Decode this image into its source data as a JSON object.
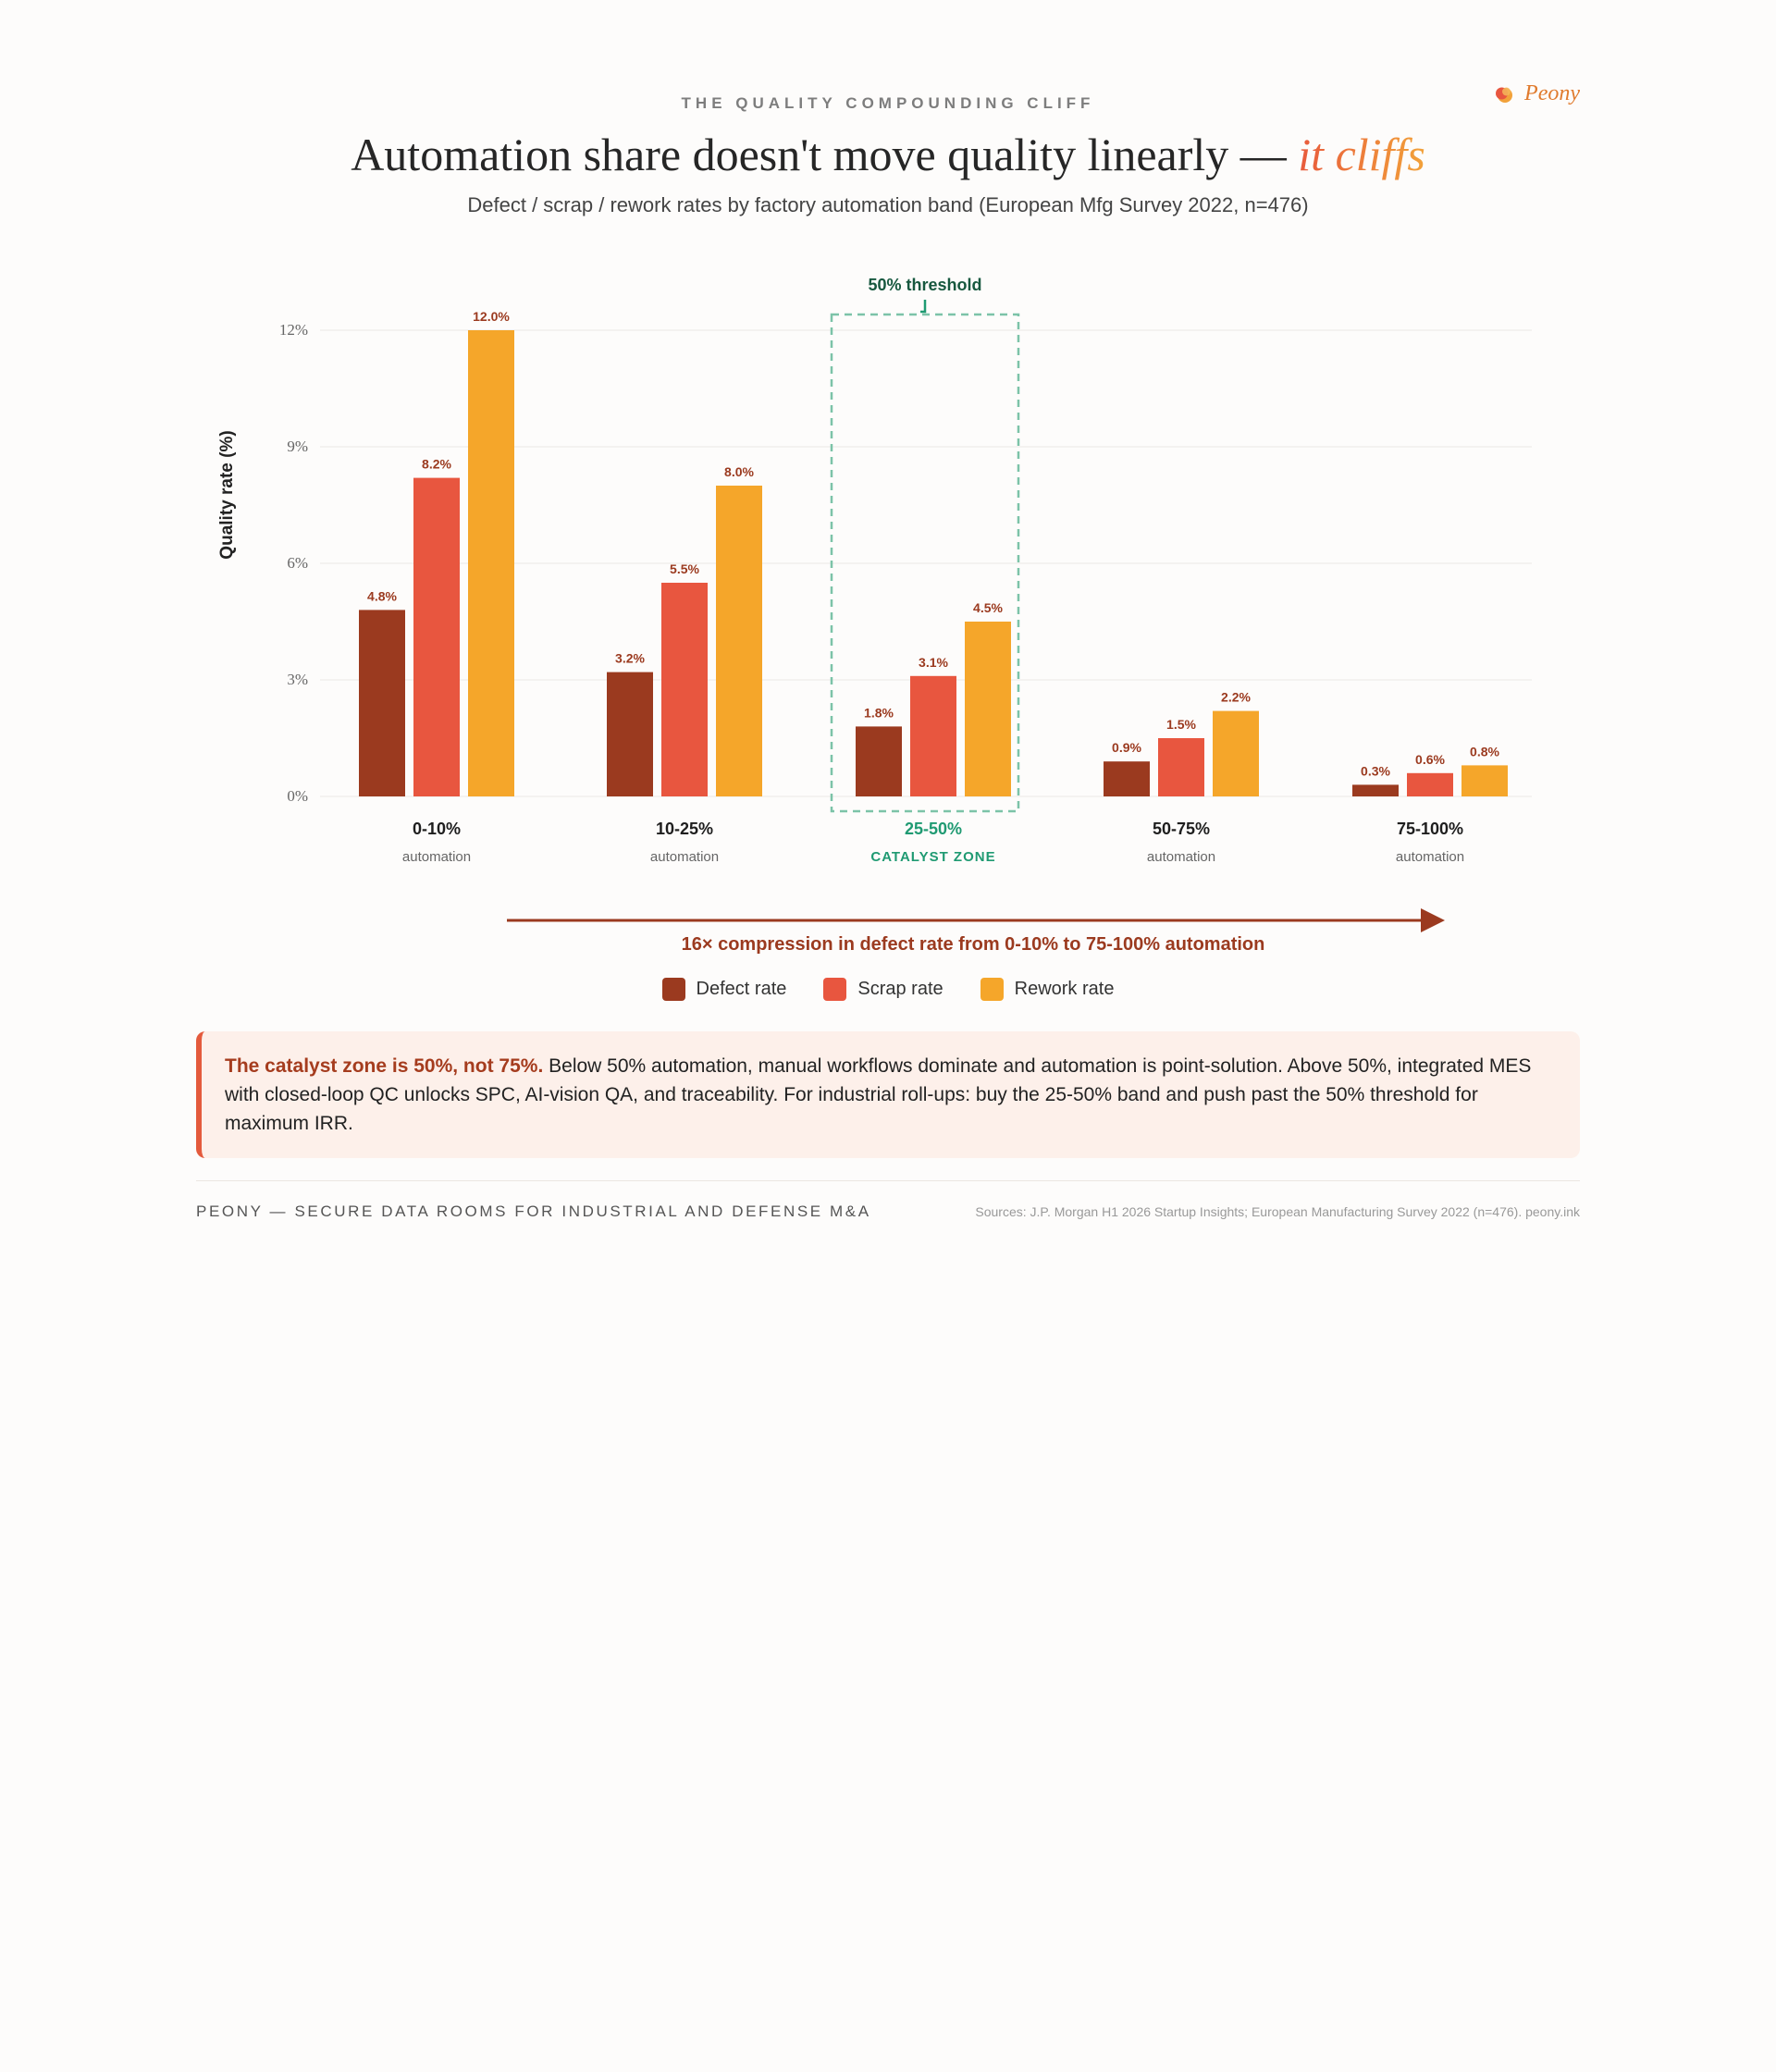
{
  "brand": {
    "name": "Peony"
  },
  "header": {
    "eyebrow": "THE QUALITY COMPOUNDING CLIFF",
    "headline": "Automation share doesn't move quality linearly —",
    "headline_accent": "it cliffs",
    "subtitle": "Defect / scrap / rework rates by factory automation band (European Mfg Survey 2022, n=476)"
  },
  "chart_data": {
    "type": "bar",
    "title": "",
    "xlabel": "",
    "ylabel": "Quality rate (%)",
    "ylim": [
      0,
      12
    ],
    "yticks": [
      {
        "value": 0,
        "label": "0%"
      },
      {
        "value": 3,
        "label": "3%"
      },
      {
        "value": 6,
        "label": "6%"
      },
      {
        "value": 9,
        "label": "9%"
      },
      {
        "value": 12,
        "label": "12%"
      }
    ],
    "grid": true,
    "legend_position": "bottom-center",
    "categories": [
      "0-10%",
      "10-25%",
      "25-50%",
      "50-75%",
      "75-100%"
    ],
    "category_sublabels": [
      "automation",
      "automation",
      "CATALYST ZONE",
      "automation",
      "automation"
    ],
    "highlight_category": "25-50%",
    "series": [
      {
        "name": "Defect rate",
        "color": "#9b3a1f",
        "values": [
          4.8,
          3.2,
          1.8,
          0.9,
          0.3
        ],
        "labels": [
          "4.8%",
          "3.2%",
          "1.8%",
          "0.9%",
          "0.3%"
        ]
      },
      {
        "name": "Scrap rate",
        "color": "#e8563f",
        "values": [
          8.2,
          5.5,
          3.1,
          1.5,
          0.6
        ],
        "labels": [
          "8.2%",
          "5.5%",
          "3.1%",
          "1.5%",
          "0.6%"
        ]
      },
      {
        "name": "Rework rate",
        "color": "#f5a62a",
        "values": [
          12.0,
          8.0,
          4.5,
          2.2,
          0.8
        ],
        "labels": [
          "12.0%",
          "8.0%",
          "4.5%",
          "2.2%",
          "0.8%"
        ]
      }
    ],
    "annotations": {
      "threshold_label": "50% threshold",
      "arrow_label": "16× compression in defect rate from 0-10% to 75-100% automation"
    }
  },
  "colors": {
    "highlight": "#1f9a72",
    "threshold_text": "#17583f",
    "value_label": "#9b3a1f",
    "arrow": "#9b3a1f"
  },
  "callout": {
    "bold": "The catalyst zone is 50%, not 75%.",
    "text": " Below 50% automation, manual workflows dominate and automation is point-solution. Above 50%, integrated MES with closed-loop QC unlocks SPC, AI-vision QA, and traceability. For industrial roll-ups: buy the 25-50% band and push past the 50% threshold for maximum IRR."
  },
  "footer": {
    "left": "PEONY — SECURE DATA ROOMS FOR INDUSTRIAL AND DEFENSE M&A",
    "right": "Sources: J.P. Morgan H1 2026 Startup Insights; European Manufacturing Survey 2022 (n=476). peony.ink"
  }
}
